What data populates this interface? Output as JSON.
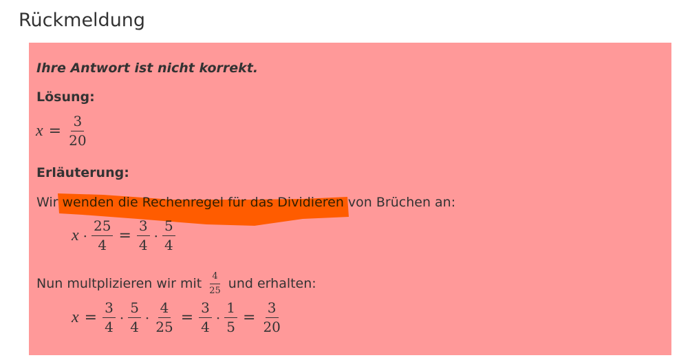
{
  "heading": "Rückmeldung",
  "feedback": {
    "status": "Ihre Antwort ist nicht korrekt.",
    "solution_label": "Lösung:",
    "solution": {
      "var": "x",
      "eq": "=",
      "num": "3",
      "den": "20"
    },
    "explanation_label": "Erläuterung:",
    "explanation_text": "Wir wenden die Rechenregel für das Dividieren von Brüchen an:",
    "eq1": {
      "var": "x",
      "f1": [
        "25",
        "4"
      ],
      "f2": [
        "3",
        "4"
      ],
      "f3": [
        "5",
        "4"
      ]
    },
    "text2_before": "Nun multplizieren wir mit",
    "text2_frac": [
      "4",
      "25"
    ],
    "text2_after": "und erhalten:",
    "eq2": {
      "var": "x",
      "f1": [
        "3",
        "4"
      ],
      "f2": [
        "5",
        "4"
      ],
      "f3": [
        "4",
        "25"
      ],
      "f4": [
        "3",
        "4"
      ],
      "f5": [
        "1",
        "5"
      ],
      "f6": [
        "3",
        "20"
      ]
    },
    "background_color": "#ff9999",
    "highlight_color": "#ff9900"
  }
}
